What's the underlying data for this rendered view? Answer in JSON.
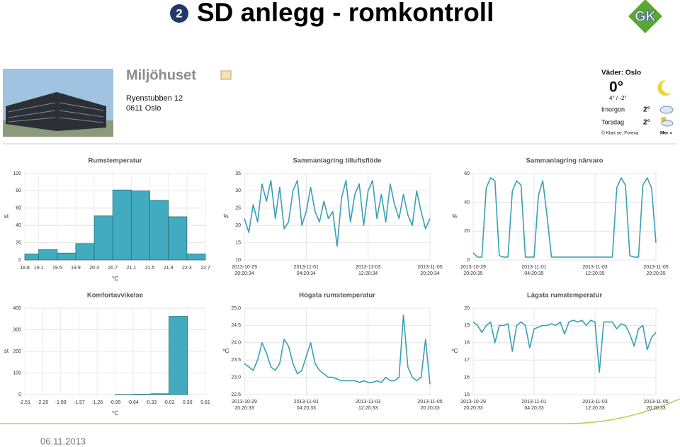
{
  "slide": {
    "number": "2",
    "title": "SD anlegg - romkontroll",
    "logo": "GK",
    "date": "06.11.2013"
  },
  "building": {
    "name": "Miljöhuset",
    "address": "Ryenstubben 12",
    "city": "0611 Oslo"
  },
  "weather": {
    "title": "Väder: Oslo",
    "temp": "0°",
    "range": "4° / -2°",
    "forecast": [
      {
        "day": "Imorgon",
        "temp": "2°"
      },
      {
        "day": "Torsdag",
        "temp": "2°"
      }
    ],
    "credit": "© Klart.se, Foreca",
    "more": "Mer »"
  },
  "chart_data": [
    {
      "type": "histogram",
      "title": "Rumstemperatur",
      "ylabel": "st",
      "xlabel": "°C",
      "color": "#42abc0",
      "grid": true,
      "bins": [
        18.8,
        19.1,
        19.5,
        19.9,
        20.3,
        20.7,
        21.1,
        21.5,
        21.9,
        22.3,
        22.7
      ],
      "values": [
        7,
        12,
        8,
        19,
        51,
        81,
        80,
        69,
        50,
        7
      ],
      "xlim": [
        18.8,
        22.7
      ],
      "xticks": [
        18.8,
        19.1,
        19.5,
        19.9,
        20.3,
        20.7,
        21.1,
        21.5,
        21.9,
        22.3,
        22.7
      ],
      "ylim": [
        0,
        100
      ],
      "yticks": [
        0,
        20,
        40,
        60,
        80,
        100
      ]
    },
    {
      "type": "line",
      "title": "Sammanlagring tilluftsflöde",
      "ylabel": "%",
      "color": "#3a9fb5",
      "grid": true,
      "x": [
        "2013-10-29 20:20:34",
        "2013-10-30 00:20:34",
        "2013-10-30 04:20:34",
        "2013-10-30 08:20:34",
        "2013-10-30 12:20:34",
        "2013-10-30 16:20:34",
        "2013-10-30 20:20:34",
        "2013-10-31 00:20:34",
        "2013-10-31 04:20:34",
        "2013-10-31 08:20:34",
        "2013-10-31 12:20:34",
        "2013-10-31 16:20:34",
        "2013-10-31 20:20:34",
        "2013-11-01 00:20:34",
        "2013-11-01 04:20:34",
        "2013-11-01 08:20:34",
        "2013-11-01 12:20:34",
        "2013-11-01 16:20:34",
        "2013-11-01 20:20:34",
        "2013-11-02 00:20:34",
        "2013-11-02 04:20:34",
        "2013-11-02 08:20:34",
        "2013-11-02 12:20:34",
        "2013-11-02 16:20:34",
        "2013-11-02 20:20:34",
        "2013-11-03 00:20:34",
        "2013-11-03 04:20:34",
        "2013-11-03 08:20:34",
        "2013-11-03 12:20:34",
        "2013-11-03 16:20:34",
        "2013-11-03 20:20:34",
        "2013-11-04 00:20:34",
        "2013-11-04 04:20:34",
        "2013-11-04 08:20:34",
        "2013-11-04 12:20:34",
        "2013-11-04 16:20:34",
        "2013-11-04 20:20:34",
        "2013-11-05 00:20:34",
        "2013-11-05 04:20:34",
        "2013-11-05 08:20:34",
        "2013-11-05 12:20:34",
        "2013-11-05 16:20:34",
        "2013-11-05 20:20:34"
      ],
      "values": [
        22,
        18,
        26,
        21,
        32,
        27,
        33,
        22,
        31,
        19,
        21,
        30,
        33,
        20,
        24,
        31,
        24,
        21,
        27,
        22,
        24,
        14,
        28,
        33,
        21,
        29,
        32,
        20,
        30,
        33,
        22,
        29,
        21,
        32,
        26,
        22,
        29,
        23,
        20,
        30,
        24,
        19,
        22
      ],
      "xlim": [
        "2013-10-29 20:20:34",
        "2013-11-05 20:20:34"
      ],
      "xticks": [
        "2013-10-29 20:20:34",
        "2013-11-01 04:20:34",
        "2013-11-03 12:20:34",
        "2013-11-05 20:20:34"
      ],
      "ylim": [
        10,
        35
      ],
      "yticks": [
        10,
        15,
        20,
        25,
        30,
        35
      ]
    },
    {
      "type": "line",
      "title": "Sammanlagring närvaro",
      "ylabel": "%",
      "color": "#3a9fb5",
      "grid": true,
      "x": [
        "2013-10-29 20:20:35",
        "2013-10-30 00:20:35",
        "2013-10-30 04:20:35",
        "2013-10-30 08:20:35",
        "2013-10-30 12:20:35",
        "2013-10-30 16:20:35",
        "2013-10-30 20:20:35",
        "2013-10-31 00:20:35",
        "2013-10-31 04:20:35",
        "2013-10-31 08:20:35",
        "2013-10-31 12:20:35",
        "2013-10-31 16:20:35",
        "2013-10-31 20:20:35",
        "2013-11-01 00:20:35",
        "2013-11-01 04:20:35",
        "2013-11-01 08:20:35",
        "2013-11-01 12:20:35",
        "2013-11-01 16:20:35",
        "2013-11-01 20:20:35",
        "2013-11-02 00:20:35",
        "2013-11-02 04:20:35",
        "2013-11-02 08:20:35",
        "2013-11-02 12:20:35",
        "2013-11-02 16:20:35",
        "2013-11-02 20:20:35",
        "2013-11-03 00:20:35",
        "2013-11-03 04:20:35",
        "2013-11-03 08:20:35",
        "2013-11-03 12:20:35",
        "2013-11-03 16:20:35",
        "2013-11-03 20:20:35",
        "2013-11-04 00:20:35",
        "2013-11-04 04:20:35",
        "2013-11-04 08:20:35",
        "2013-11-04 12:20:35",
        "2013-11-04 16:20:35",
        "2013-11-04 20:20:35",
        "2013-11-05 00:20:35",
        "2013-11-05 04:20:35",
        "2013-11-05 08:20:35",
        "2013-11-05 12:20:35",
        "2013-11-05 16:20:35",
        "2013-11-05 20:20:35"
      ],
      "values": [
        5,
        2,
        2,
        50,
        57,
        55,
        3,
        2,
        2,
        48,
        55,
        52,
        2,
        2,
        2,
        45,
        55,
        30,
        2,
        2,
        2,
        2,
        2,
        2,
        2,
        2,
        2,
        2,
        2,
        2,
        2,
        2,
        2,
        50,
        57,
        52,
        3,
        2,
        2,
        52,
        57,
        50,
        12
      ],
      "xlim": [
        "2013-10-29 20:20:35",
        "2013-11-05 20:20:35"
      ],
      "xticks": [
        "2013-10-29 20:20:35",
        "2013-11-01 04:20:35",
        "2013-11-03 12:20:35",
        "2013-11-05 20:20:35"
      ],
      "ylim": [
        0,
        60
      ],
      "yticks": [
        0,
        20,
        40,
        60
      ]
    },
    {
      "type": "histogram",
      "title": "Komfortavvikelse",
      "ylabel": "st",
      "xlabel": "°C",
      "color": "#42abc0",
      "grid": true,
      "bins": [
        -2.51,
        -2.2,
        -1.89,
        -1.57,
        -1.26,
        -0.95,
        -0.64,
        -0.33,
        -0.02,
        0.3,
        0.61
      ],
      "values": [
        0,
        0,
        0,
        0,
        0,
        1,
        2,
        4,
        362,
        0
      ],
      "xlim": [
        -2.51,
        0.61
      ],
      "xticks": [
        -2.51,
        {
          "value": -2.2,
          "label": "-2.20"
        },
        -1.89,
        -1.57,
        -1.26,
        -0.95,
        -0.64,
        -0.33,
        -0.02,
        {
          "value": 0.3,
          "label": "0.30"
        },
        0.61
      ],
      "ylim": [
        0,
        400
      ],
      "yticks": [
        0,
        100,
        200,
        300,
        400
      ]
    },
    {
      "type": "line",
      "title": "Högsta rumstemperatur",
      "ylabel": "ºC",
      "color": "#3a9fb5",
      "grid": true,
      "x": [
        "2013-10-29 20:20:33",
        "2013-10-30 00:20:33",
        "2013-10-30 04:20:33",
        "2013-10-30 08:20:33",
        "2013-10-30 12:20:33",
        "2013-10-30 16:20:33",
        "2013-10-30 20:20:33",
        "2013-10-31 00:20:33",
        "2013-10-31 04:20:33",
        "2013-10-31 08:20:33",
        "2013-10-31 12:20:33",
        "2013-10-31 16:20:33",
        "2013-10-31 20:20:33",
        "2013-11-01 00:20:33",
        "2013-11-01 04:20:33",
        "2013-11-01 08:20:33",
        "2013-11-01 12:20:33",
        "2013-11-01 16:20:33",
        "2013-11-01 20:20:33",
        "2013-11-02 00:20:33",
        "2013-11-02 04:20:33",
        "2013-11-02 08:20:33",
        "2013-11-02 12:20:33",
        "2013-11-02 16:20:33",
        "2013-11-02 20:20:33",
        "2013-11-03 00:20:33",
        "2013-11-03 04:20:33",
        "2013-11-03 08:20:33",
        "2013-11-03 12:20:33",
        "2013-11-03 16:20:33",
        "2013-11-03 20:20:33",
        "2013-11-04 00:20:33",
        "2013-11-04 04:20:33",
        "2013-11-04 08:20:33",
        "2013-11-04 12:20:33",
        "2013-11-04 16:20:33",
        "2013-11-04 20:20:33",
        "2013-11-05 00:20:33",
        "2013-11-05 04:20:33",
        "2013-11-05 08:20:33",
        "2013-11-05 12:20:33",
        "2013-11-05 16:20:33",
        "2013-11-05 20:20:33"
      ],
      "values": [
        23.4,
        23.3,
        23.2,
        23.5,
        24.0,
        23.7,
        23.3,
        23.2,
        23.4,
        24.1,
        23.9,
        23.4,
        23.1,
        23.2,
        23.6,
        24.0,
        23.4,
        23.2,
        23.1,
        23.0,
        23.0,
        22.95,
        22.9,
        22.9,
        22.9,
        22.9,
        22.85,
        22.9,
        22.85,
        22.85,
        22.9,
        22.85,
        23.0,
        22.9,
        22.9,
        23.0,
        24.8,
        23.3,
        23.0,
        22.9,
        23.0,
        24.1,
        22.8
      ],
      "xlim": [
        "2013-10-29 20:20:33",
        "2013-11-05 20:20:33"
      ],
      "xticks": [
        "2013-10-29 20:20:33",
        "2013-11-01 04:20:33",
        "2013-11-03 12:20:33",
        "2013-11-05 20:20:33"
      ],
      "ylim": [
        22.5,
        25
      ],
      "yticks": [
        22.5,
        {
          "value": 23,
          "label": "23.0"
        },
        23.5,
        {
          "value": 24,
          "label": "24.0"
        },
        24.5,
        {
          "value": 25,
          "label": "25.0"
        }
      ]
    },
    {
      "type": "line",
      "title": "Lägsta rumstemperatur",
      "ylabel": "ºC",
      "color": "#3a9fb5",
      "grid": true,
      "x": [
        "2013-10-29 20:20:33",
        "2013-10-30 00:20:33",
        "2013-10-30 04:20:33",
        "2013-10-30 08:20:33",
        "2013-10-30 12:20:33",
        "2013-10-30 16:20:33",
        "2013-10-30 20:20:33",
        "2013-10-31 00:20:33",
        "2013-10-31 04:20:33",
        "2013-10-31 08:20:33",
        "2013-10-31 12:20:33",
        "2013-10-31 16:20:33",
        "2013-10-31 20:20:33",
        "2013-11-01 00:20:33",
        "2013-11-01 04:20:33",
        "2013-11-01 08:20:33",
        "2013-11-01 12:20:33",
        "2013-11-01 16:20:33",
        "2013-11-01 20:20:33",
        "2013-11-02 00:20:33",
        "2013-11-02 04:20:33",
        "2013-11-02 08:20:33",
        "2013-11-02 12:20:33",
        "2013-11-02 16:20:33",
        "2013-11-02 20:20:33",
        "2013-11-03 00:20:33",
        "2013-11-03 04:20:33",
        "2013-11-03 08:20:33",
        "2013-11-03 12:20:33",
        "2013-11-03 16:20:33",
        "2013-11-03 20:20:33",
        "2013-11-04 00:20:33",
        "2013-11-04 04:20:33",
        "2013-11-04 08:20:33",
        "2013-11-04 12:20:33",
        "2013-11-04 16:20:33",
        "2013-11-04 20:20:33",
        "2013-11-05 00:20:33",
        "2013-11-05 04:20:33",
        "2013-11-05 08:20:33",
        "2013-11-05 12:20:33",
        "2013-11-05 16:20:33",
        "2013-11-05 20:20:33"
      ],
      "values": [
        19.2,
        19.0,
        18.6,
        19.0,
        19.2,
        18.0,
        19.0,
        19.0,
        19.1,
        17.5,
        19.0,
        19.2,
        19.0,
        17.7,
        18.8,
        18.9,
        19.0,
        19.0,
        19.1,
        19.0,
        19.2,
        18.5,
        19.2,
        19.3,
        19.2,
        19.3,
        19.0,
        19.3,
        19.2,
        16.3,
        19.2,
        19.2,
        19.2,
        18.8,
        19.1,
        19.0,
        18.5,
        17.8,
        18.8,
        19.0,
        17.6,
        18.3,
        18.6
      ],
      "xlim": [
        "2013-10-29 20:20:33",
        "2013-11-05 20:20:33"
      ],
      "xticks": [
        "2013-10-29 20:20:33",
        "2013-11-01 04:20:33",
        "2013-11-03 12:20:33",
        "2013-11-05 20:20:33"
      ],
      "ylim": [
        15,
        20
      ],
      "yticks": [
        15,
        16,
        17,
        18,
        19,
        20
      ]
    }
  ]
}
